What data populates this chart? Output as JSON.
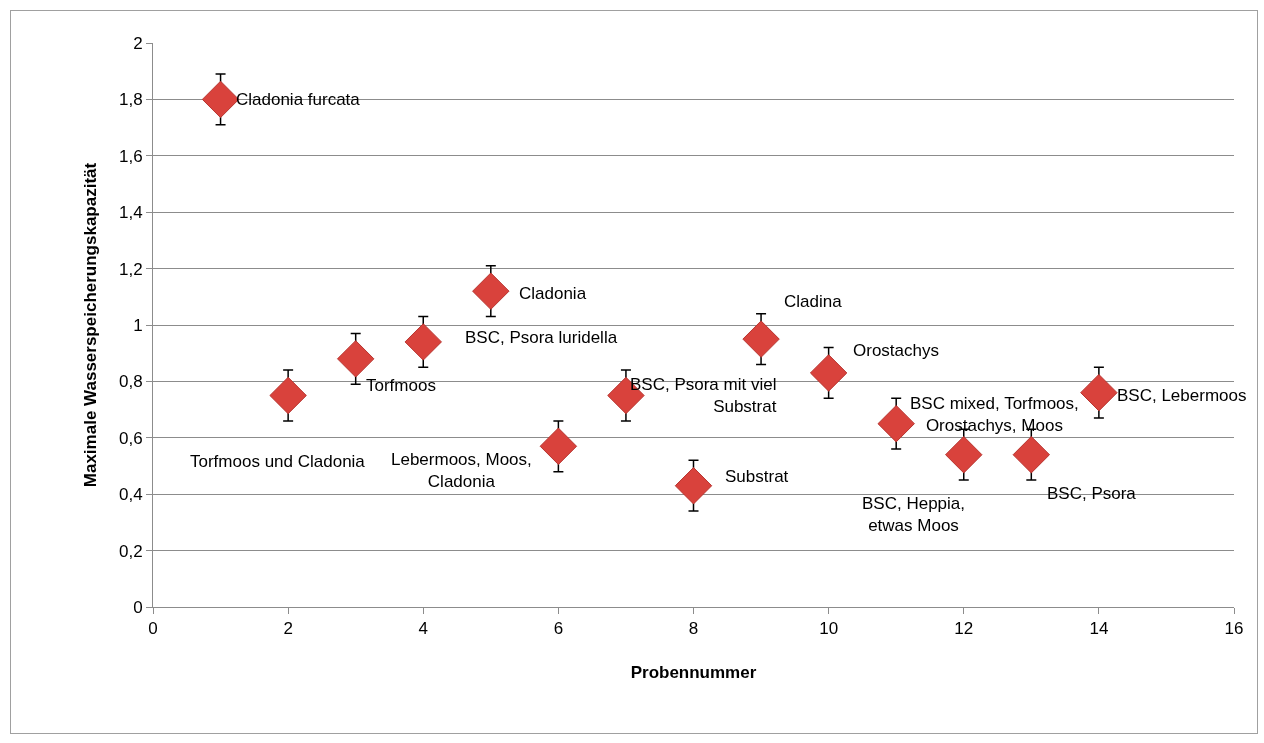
{
  "chart_data": {
    "type": "scatter",
    "xlabel": "Probennummer",
    "ylabel": "Maximale Wasserspeicherungskapazität",
    "x": [
      1,
      2,
      3,
      4,
      5,
      6,
      7,
      8,
      9,
      10,
      11,
      12,
      13,
      14
    ],
    "series": [
      {
        "color": "#d9423c",
        "values": [
          1.8,
          0.75,
          0.88,
          0.94,
          1.12,
          0.57,
          0.75,
          0.43,
          0.95,
          0.83,
          0.65,
          0.54,
          0.54,
          0.76
        ],
        "errors": [
          0.09,
          0.09,
          0.09,
          0.09,
          0.09,
          0.09,
          0.09,
          0.09,
          0.09,
          0.09,
          0.09,
          0.09,
          0.09,
          0.09
        ]
      }
    ],
    "annotations": [
      {
        "text": "Cladonia furcata",
        "x": 1,
        "y": 1.8
      },
      "Torfmoos und Cladonia",
      {
        "text": "Torfmoos",
        "x": 3,
        "y": 0.88
      },
      {
        "text": "BSC, Psora luridella",
        "x": 4,
        "y": 0.94
      },
      {
        "text": "Cladonia",
        "x": 5,
        "y": 1.12
      },
      {
        "text": "Lebermoos, Moos,\nCladonia",
        "x": 6,
        "y": 0.57
      },
      {
        "text": "BSC, Psora mit viel\nSubstrat",
        "x": 7,
        "y": 0.75
      },
      {
        "text": "Substrat",
        "x": 8,
        "y": 0.43
      },
      {
        "text": "Cladina",
        "x": 9,
        "y": 0.95
      },
      {
        "text": "Orostachys",
        "x": 10,
        "y": 0.83
      },
      "BSC, Heppia,\netwas Moos",
      {
        "text": "BSC mixed, Torfmoos,\nOrostachys, Moos",
        "x": 12,
        "y": 0.54
      },
      {
        "text": "BSC, Psora",
        "x": 13,
        "y": 0.54
      },
      {
        "text": "BSC, Lebermoos",
        "x": 14,
        "y": 0.76
      }
    ],
    "xlim": [
      0,
      16
    ],
    "xticks": [
      0,
      2,
      4,
      6,
      8,
      10,
      12,
      14,
      16
    ],
    "ylim": [
      0,
      2
    ],
    "yticks": [
      0,
      {
        "value": 0.2,
        "label": "0,2"
      },
      {
        "value": 0.4,
        "label": "0,4"
      },
      {
        "value": 0.6,
        "label": "0,6"
      },
      {
        "value": 0.8,
        "label": "0,8"
      },
      1,
      {
        "value": 1.2,
        "label": "1,2"
      },
      {
        "value": 1.4,
        "label": "1,4"
      },
      {
        "value": 1.6,
        "label": "1,6"
      },
      {
        "value": 1.8,
        "label": "1,8"
      },
      2
    ],
    "grid": "y",
    "marker": "diamond"
  }
}
